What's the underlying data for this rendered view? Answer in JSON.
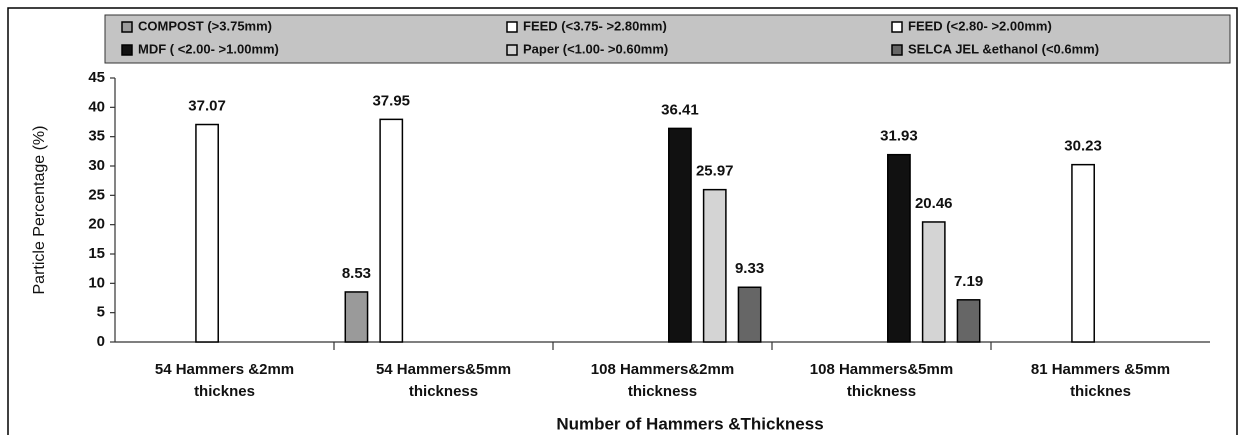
{
  "chart_data": {
    "type": "bar",
    "x_label": "Number of Hammers  &Thickness",
    "y_label": "Particle Percentage (%)",
    "categories": [
      "54 Hammers &2mm thicknes",
      "54  Hammers&5mm thickness",
      "108 Hammers&2mm thickness",
      "108 Hammers&5mm thickness",
      "81 Hammers &5mm thicknes"
    ],
    "series": [
      {
        "name": "COMPOST  (>3.75mm)",
        "color": "#9a9a9a",
        "values": [
          null,
          8.53,
          null,
          null,
          null
        ]
      },
      {
        "name": "FEED (<3.75- >2.80mm)",
        "color": "#ffffff",
        "values": [
          null,
          37.95,
          null,
          null,
          null
        ]
      },
      {
        "name": "FEED  (<2.80- >2.00mm)",
        "color": "#ffffff",
        "values": [
          37.07,
          null,
          null,
          null,
          30.23
        ]
      },
      {
        "name": "MDF ( <2.00-  >1.00mm)",
        "color": "#111111",
        "values": [
          null,
          null,
          36.41,
          31.93,
          null
        ]
      },
      {
        "name": "Paper (<1.00- >0.60mm)",
        "color": "#d4d4d4",
        "values": [
          null,
          null,
          25.97,
          20.46,
          null
        ]
      },
      {
        "name": "SELCA JEL &ethanol  (<0.6mm)",
        "color": "#666666",
        "values": [
          null,
          null,
          9.33,
          7.19,
          null
        ]
      }
    ],
    "ylim": [
      0,
      45
    ],
    "yticks": [
      0,
      5,
      10,
      15,
      20,
      25,
      30,
      35,
      40,
      45
    ],
    "grid": false
  }
}
